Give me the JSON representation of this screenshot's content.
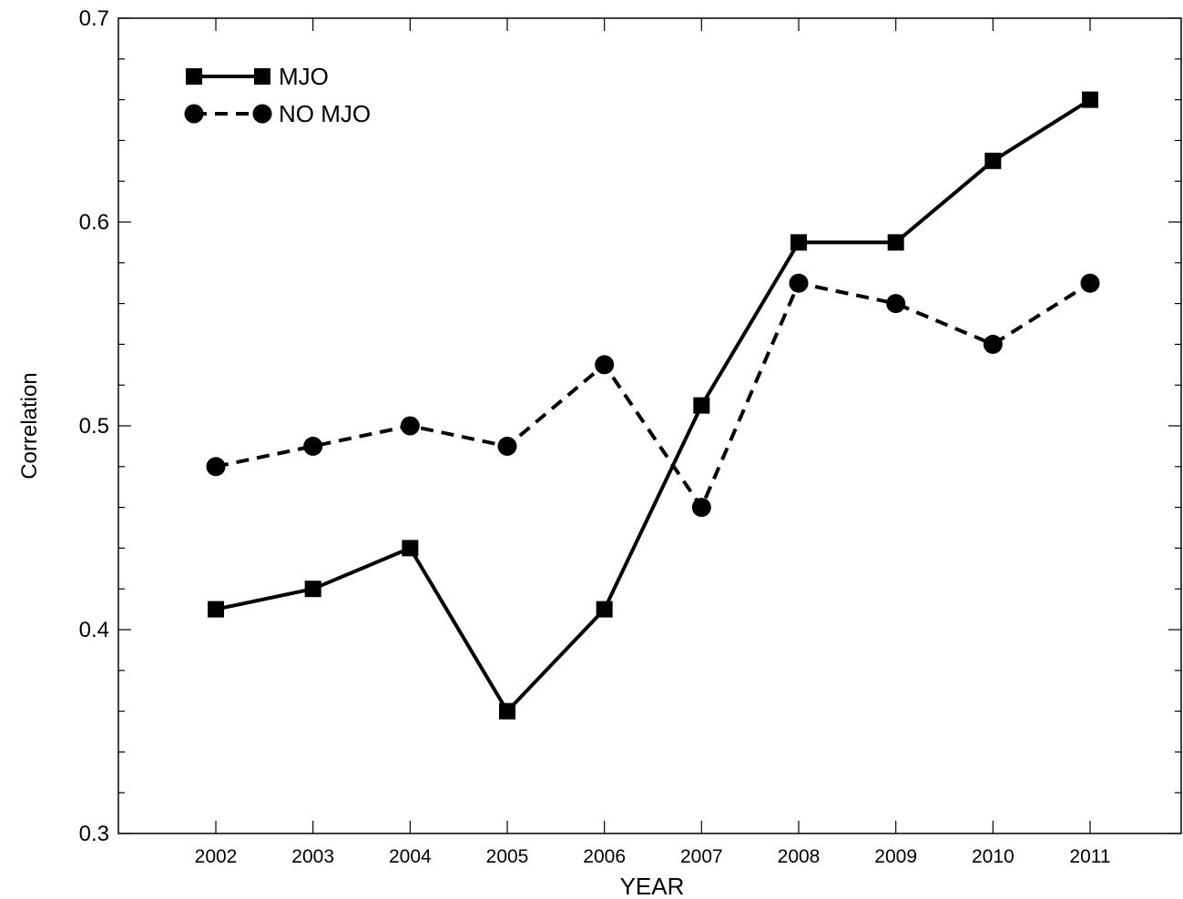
{
  "chart_data": {
    "type": "line",
    "xlabel": "YEAR",
    "ylabel": "Correlation",
    "x": [
      2002,
      2003,
      2004,
      2005,
      2006,
      2007,
      2008,
      2009,
      2010,
      2011
    ],
    "x_tick_labels": [
      "2002",
      "2003",
      "2004",
      "2005",
      "2006",
      "2007",
      "2008",
      "2009",
      "2010",
      "2011"
    ],
    "xlim": [
      2001,
      2012
    ],
    "ylim": [
      0.3,
      0.7
    ],
    "y_ticks": [
      0.3,
      0.4,
      0.5,
      0.6,
      0.7
    ],
    "y_tick_labels": [
      "0.3",
      "0.4",
      "0.5",
      "0.6",
      "0.7"
    ],
    "grid": false,
    "legend_position": "top-left",
    "series": [
      {
        "name": "MJO",
        "line_style": "solid",
        "marker": "square",
        "color": "#000000",
        "values": [
          0.41,
          0.42,
          0.44,
          0.36,
          0.41,
          0.51,
          0.59,
          0.59,
          0.63,
          0.66
        ]
      },
      {
        "name": "NO MJO",
        "line_style": "dashed",
        "marker": "circle",
        "color": "#000000",
        "values": [
          0.48,
          0.49,
          0.5,
          0.49,
          0.53,
          0.46,
          0.57,
          0.56,
          0.54,
          0.57
        ]
      }
    ]
  }
}
